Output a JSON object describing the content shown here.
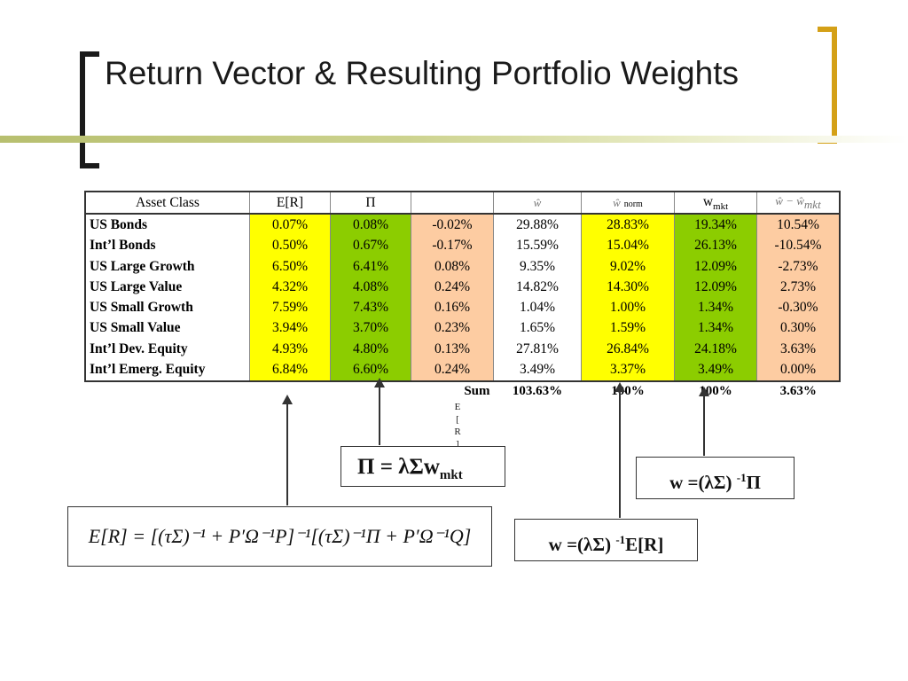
{
  "title": "Return Vector & Resulting Portfolio Weights",
  "table": {
    "headers": {
      "asset_class": "Asset Class",
      "er": "E[R]",
      "pi": "Π",
      "diff": "",
      "w_hat": "ŵ",
      "w_hat_norm": "ŵ",
      "norm_label": "norm",
      "w_mkt_main": "w",
      "w_mkt_sub": "mkt",
      "w_minus": "ŵ − ŵ",
      "w_minus_sub": "mkt"
    },
    "rows": [
      {
        "asset": "US Bonds",
        "er": "0.07%",
        "pi": "0.08%",
        "diff": "-0.02%",
        "w": "29.88%",
        "w_norm": "28.83%",
        "w_mkt": "19.34%",
        "w_diff": "10.54%"
      },
      {
        "asset": "Int’l Bonds",
        "er": "0.50%",
        "pi": "0.67%",
        "diff": "-0.17%",
        "w": "15.59%",
        "w_norm": "15.04%",
        "w_mkt": "26.13%",
        "w_diff": "-10.54%"
      },
      {
        "asset": "US Large Growth",
        "er": "6.50%",
        "pi": "6.41%",
        "diff": "0.08%",
        "w": "9.35%",
        "w_norm": "9.02%",
        "w_mkt": "12.09%",
        "w_diff": "-2.73%"
      },
      {
        "asset": "US Large Value",
        "er": "4.32%",
        "pi": "4.08%",
        "diff": "0.24%",
        "w": "14.82%",
        "w_norm": "14.30%",
        "w_mkt": "12.09%",
        "w_diff": "2.73%"
      },
      {
        "asset": "US Small Growth",
        "er": "7.59%",
        "pi": "7.43%",
        "diff": "0.16%",
        "w": "1.04%",
        "w_norm": "1.00%",
        "w_mkt": "1.34%",
        "w_diff": "-0.30%"
      },
      {
        "asset": "US Small Value",
        "er": "3.94%",
        "pi": "3.70%",
        "diff": "0.23%",
        "w": "1.65%",
        "w_norm": "1.59%",
        "w_mkt": "1.34%",
        "w_diff": "0.30%"
      },
      {
        "asset": "Int’l Dev. Equity",
        "er": "4.93%",
        "pi": "4.80%",
        "diff": "0.13%",
        "w": "27.81%",
        "w_norm": "26.84%",
        "w_mkt": "24.18%",
        "w_diff": "3.63%"
      },
      {
        "asset": "Int’l Emerg. Equity",
        "er": "6.84%",
        "pi": "6.60%",
        "diff": "0.24%",
        "w": "3.49%",
        "w_norm": "3.37%",
        "w_mkt": "3.49%",
        "w_diff": "0.00%"
      }
    ],
    "sum": {
      "label": "Sum",
      "w": "103.63%",
      "w_norm": "100%",
      "w_mkt": "100%",
      "w_diff": "3.63%"
    }
  },
  "stray_letters": [
    "E",
    "[",
    "R",
    "]"
  ],
  "formulas": {
    "pi": {
      "lhs": "Π = λΣw",
      "sub": "mkt"
    },
    "w_pi": {
      "text": "w  =(λΣ) ",
      "sup": "-1",
      "tail": "Π"
    },
    "w_er": {
      "text": "w  =(λΣ) ",
      "sup": "-1",
      "tail": "E[R]"
    },
    "er": "E[R] = [(τΣ)⁻¹ + P′Ω⁻¹P]⁻¹[(τΣ)⁻¹Π + P′Ω⁻¹Q]"
  }
}
